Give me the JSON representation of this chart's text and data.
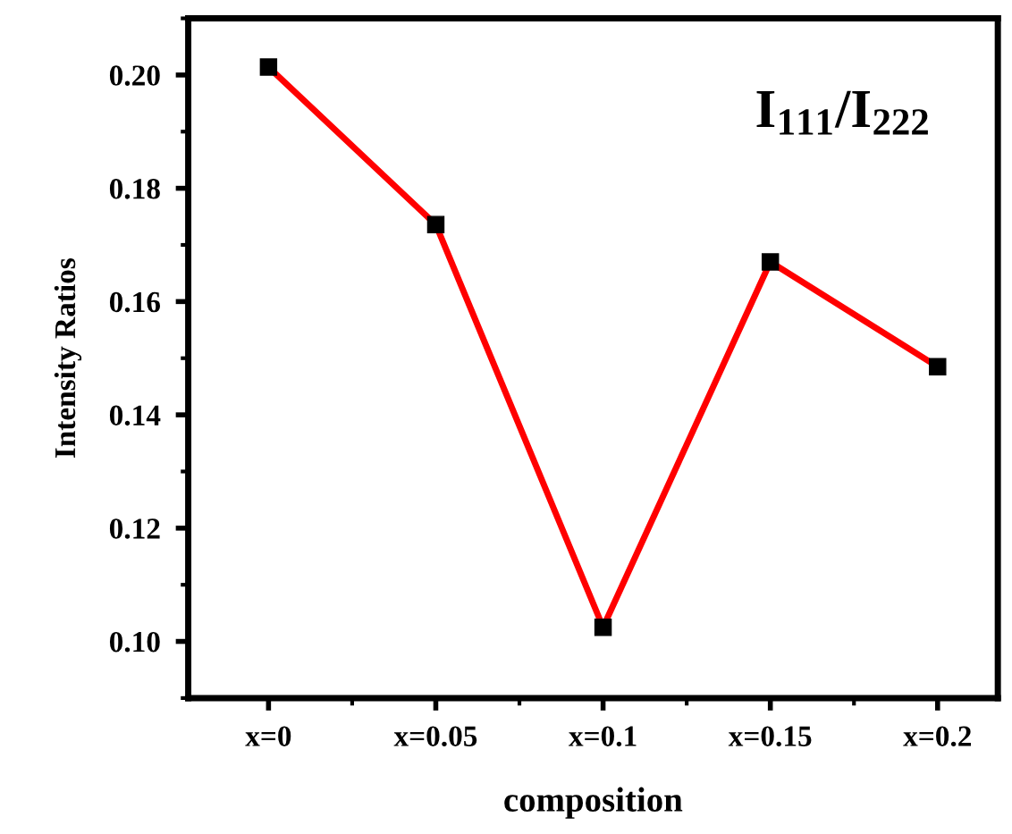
{
  "chart_data": {
    "type": "line",
    "xlabel": "composition",
    "ylabel": "Intensity Ratios",
    "categories": [
      "x=0",
      "x=0.05",
      "x=0.1",
      "x=0.15",
      "x=0.2"
    ],
    "series": [
      {
        "color": "#ff0000",
        "values": [
          0.2014,
          0.1736,
          0.1025,
          0.167,
          0.1485
        ]
      }
    ],
    "marker": "square",
    "line_style": "solid",
    "ylim": [
      0.09,
      0.21
    ],
    "yticks": [
      {
        "value": 0.1,
        "label": "0.10"
      },
      {
        "value": 0.12,
        "label": "0.12"
      },
      {
        "value": 0.14,
        "label": "0.14"
      },
      {
        "value": 0.16,
        "label": "0.16"
      },
      {
        "value": 0.18,
        "label": "0.18"
      },
      {
        "value": 0.2,
        "label": "0.20"
      }
    ],
    "annotations": [
      "I$_{111}$/I$_{222}$"
    ],
    "grid": false,
    "legend": false
  }
}
